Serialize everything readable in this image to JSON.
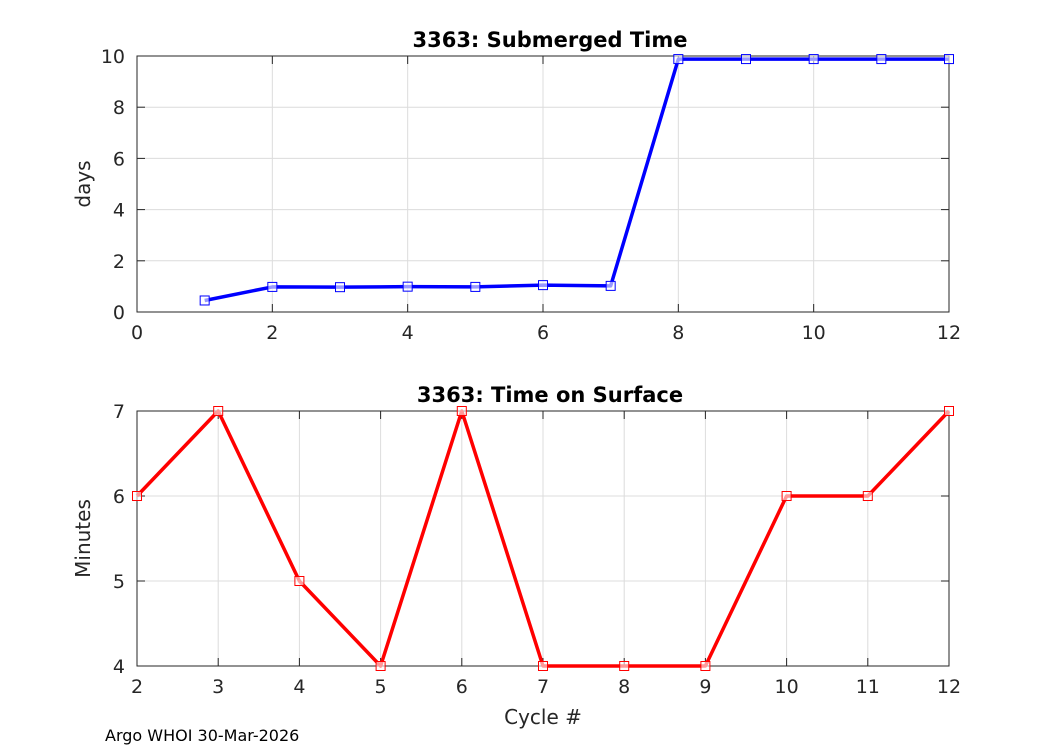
{
  "footer": "Argo WHOI 30-Mar-2026",
  "chart_data": [
    {
      "type": "line",
      "title": "3363: Submerged Time",
      "xlabel": "",
      "ylabel": "days",
      "xlim": [
        0,
        12
      ],
      "ylim": [
        0,
        10
      ],
      "xticks": [
        0,
        2,
        4,
        6,
        8,
        10,
        12
      ],
      "yticks": [
        0,
        2,
        4,
        6,
        8,
        10
      ],
      "grid": true,
      "color": "#0000ff",
      "marker": "square",
      "x": [
        1,
        2,
        3,
        4,
        5,
        6,
        7,
        8,
        9,
        10,
        11,
        12
      ],
      "y": [
        0.45,
        0.98,
        0.97,
        0.99,
        0.98,
        1.05,
        1.02,
        9.88,
        9.88,
        9.88,
        9.88,
        9.88
      ]
    },
    {
      "type": "line",
      "title": "3363: Time on Surface",
      "xlabel": "Cycle #",
      "ylabel": "Minutes",
      "xlim": [
        2,
        12
      ],
      "ylim": [
        4,
        7
      ],
      "xticks": [
        2,
        3,
        4,
        5,
        6,
        7,
        8,
        9,
        10,
        11,
        12
      ],
      "yticks": [
        4,
        5,
        6,
        7
      ],
      "grid": true,
      "color": "#ff0000",
      "marker": "square",
      "x": [
        2,
        3,
        4,
        5,
        6,
        7,
        8,
        9,
        10,
        11,
        12
      ],
      "y": [
        6,
        7,
        5,
        4,
        7,
        4,
        4,
        4,
        6,
        6,
        7
      ]
    }
  ]
}
